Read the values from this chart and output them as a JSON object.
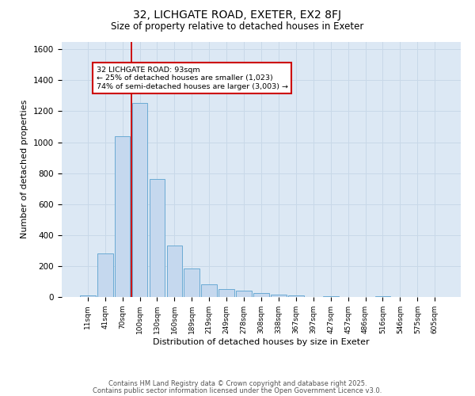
{
  "title1": "32, LICHGATE ROAD, EXETER, EX2 8FJ",
  "title2": "Size of property relative to detached houses in Exeter",
  "xlabel": "Distribution of detached houses by size in Exeter",
  "ylabel": "Number of detached properties",
  "categories": [
    "11sqm",
    "41sqm",
    "70sqm",
    "100sqm",
    "130sqm",
    "160sqm",
    "189sqm",
    "219sqm",
    "249sqm",
    "278sqm",
    "308sqm",
    "338sqm",
    "367sqm",
    "397sqm",
    "427sqm",
    "457sqm",
    "486sqm",
    "516sqm",
    "546sqm",
    "575sqm",
    "605sqm"
  ],
  "values": [
    10,
    280,
    1040,
    1255,
    760,
    335,
    185,
    80,
    50,
    40,
    25,
    15,
    8,
    0,
    5,
    0,
    0,
    5,
    0,
    0,
    0
  ],
  "bar_color": "#c5d8ee",
  "bar_edge_color": "#6aaad4",
  "vline_color": "#cc0000",
  "vline_index": 2.5,
  "annotation_text": "32 LICHGATE ROAD: 93sqm\n← 25% of detached houses are smaller (1,023)\n74% of semi-detached houses are larger (3,003) →",
  "annotation_box_color": "#ffffff",
  "annotation_box_edge": "#cc0000",
  "ylim": [
    0,
    1650
  ],
  "yticks": [
    0,
    200,
    400,
    600,
    800,
    1000,
    1200,
    1400,
    1600
  ],
  "grid_color": "#c8d8e8",
  "background_color": "#dce8f4",
  "footer1": "Contains HM Land Registry data © Crown copyright and database right 2025.",
  "footer2": "Contains public sector information licensed under the Open Government Licence v3.0."
}
